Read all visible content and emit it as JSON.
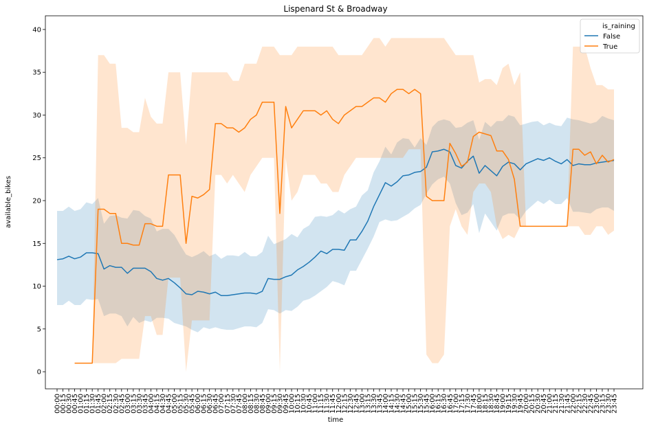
{
  "chart_data": {
    "type": "line",
    "title": "Lispenard St & Broadway",
    "xlabel": "time",
    "ylabel": "available_bikes",
    "ylim": [
      -2,
      41.6
    ],
    "yticks": [
      0,
      5,
      10,
      15,
      20,
      25,
      30,
      35,
      40
    ],
    "legend": {
      "title": "is_raining",
      "position": "top-right"
    },
    "colors": {
      "False": "#1f77b4",
      "True": "#ff7f0e"
    },
    "x": [
      "00:00",
      "00:15",
      "00:30",
      "00:45",
      "01:00",
      "01:15",
      "01:30",
      "01:45",
      "02:00",
      "02:15",
      "02:30",
      "02:45",
      "03:00",
      "03:15",
      "03:30",
      "03:45",
      "04:00",
      "04:15",
      "04:30",
      "04:45",
      "05:00",
      "05:15",
      "05:30",
      "05:45",
      "06:00",
      "06:15",
      "06:30",
      "06:45",
      "07:00",
      "07:15",
      "07:30",
      "07:45",
      "08:00",
      "08:15",
      "08:30",
      "08:45",
      "09:00",
      "09:15",
      "09:30",
      "09:45",
      "10:00",
      "10:15",
      "10:30",
      "10:45",
      "11:00",
      "11:15",
      "11:30",
      "11:45",
      "12:00",
      "12:15",
      "12:30",
      "12:45",
      "13:00",
      "13:15",
      "13:30",
      "13:45",
      "14:00",
      "14:15",
      "14:30",
      "14:45",
      "15:00",
      "15:15",
      "15:30",
      "15:45",
      "16:00",
      "16:15",
      "16:30",
      "16:45",
      "17:00",
      "17:15",
      "17:30",
      "17:45",
      "18:00",
      "18:15",
      "18:30",
      "18:45",
      "19:00",
      "19:15",
      "19:30",
      "19:45",
      "20:00",
      "20:15",
      "20:30",
      "20:45",
      "21:00",
      "21:15",
      "21:30",
      "21:45",
      "22:00",
      "22:15",
      "22:30",
      "22:45",
      "23:00",
      "23:15",
      "23:30",
      "23:45"
    ],
    "series": [
      {
        "name": "False",
        "values": [
          13.1,
          13.2,
          13.5,
          13.2,
          13.4,
          13.9,
          13.9,
          13.8,
          12.0,
          12.4,
          12.2,
          12.2,
          11.5,
          12.1,
          12.1,
          12.1,
          11.7,
          10.9,
          10.7,
          10.9,
          10.4,
          9.8,
          9.1,
          9.0,
          9.4,
          9.3,
          9.1,
          9.3,
          8.9,
          8.9,
          9.0,
          9.1,
          9.2,
          9.2,
          9.1,
          9.4,
          10.9,
          10.8,
          10.8,
          11.1,
          11.3,
          11.9,
          12.3,
          12.8,
          13.4,
          14.1,
          13.8,
          14.3,
          14.3,
          14.2,
          15.4,
          15.4,
          16.4,
          17.6,
          19.3,
          20.7,
          22.1,
          21.7,
          22.2,
          22.9,
          23.0,
          23.3,
          23.4,
          23.9,
          25.7,
          25.8,
          26.0,
          25.7,
          24.1,
          23.8,
          24.6,
          25.2,
          23.2,
          24.1,
          23.5,
          22.9,
          24.0,
          24.5,
          24.3,
          23.6,
          24.3,
          24.6,
          24.9,
          24.7,
          25.0,
          24.6,
          24.3,
          24.8,
          24.1,
          24.3,
          24.2,
          24.2,
          24.4,
          24.5,
          24.6,
          24.7
        ],
        "lower": [
          7.8,
          7.8,
          8.3,
          7.8,
          7.8,
          8.5,
          8.4,
          8.5,
          6.5,
          6.8,
          6.8,
          6.5,
          5.3,
          6.4,
          5.7,
          6.0,
          5.8,
          6.3,
          6.3,
          6.2,
          5.7,
          5.5,
          5.3,
          4.9,
          4.6,
          5.2,
          5.0,
          5.2,
          5.0,
          4.9,
          4.9,
          5.1,
          5.3,
          5.3,
          5.2,
          5.7,
          7.3,
          7.2,
          6.8,
          7.2,
          7.1,
          7.6,
          8.3,
          8.5,
          8.9,
          9.4,
          9.9,
          10.6,
          10.4,
          10.1,
          11.8,
          11.8,
          13.1,
          14.4,
          15.8,
          17.5,
          17.8,
          17.6,
          17.7,
          18.1,
          18.5,
          19.1,
          19.5,
          20.8,
          21.9,
          22.5,
          22.8,
          22.0,
          19.7,
          18.3,
          18.6,
          19.6,
          16.2,
          18.5,
          17.5,
          16.5,
          18.2,
          18.5,
          18.5,
          17.8,
          18.8,
          19.4,
          20.0,
          19.6,
          20.1,
          19.6,
          19.6,
          20.3,
          18.7,
          18.7,
          18.6,
          18.5,
          19.0,
          19.2,
          19.2,
          18.8
        ],
        "upper": [
          18.8,
          18.8,
          19.3,
          18.8,
          19.0,
          19.8,
          19.6,
          20.3,
          17.3,
          18.2,
          18.3,
          18.0,
          17.9,
          18.9,
          18.8,
          18.2,
          17.9,
          16.4,
          16.7,
          16.7,
          16.0,
          14.8,
          13.7,
          13.4,
          13.7,
          14.1,
          13.5,
          13.8,
          13.2,
          13.6,
          13.6,
          13.5,
          14.0,
          13.5,
          13.5,
          14.0,
          15.9,
          14.9,
          15.2,
          15.5,
          16.1,
          15.7,
          16.7,
          17.1,
          18.1,
          18.2,
          18.1,
          18.3,
          18.9,
          18.5,
          19.0,
          19.3,
          20.6,
          21.2,
          23.3,
          24.6,
          26.3,
          25.4,
          26.8,
          27.3,
          27.2,
          26.2,
          27.3,
          26.5,
          28.6,
          29.3,
          29.5,
          29.3,
          28.5,
          28.6,
          29.1,
          29.4,
          27.1,
          29.2,
          28.6,
          29.3,
          29.3,
          30.0,
          29.8,
          28.8,
          29.0,
          29.2,
          29.3,
          28.8,
          29.1,
          28.8,
          28.7,
          29.7,
          29.5,
          29.4,
          29.2,
          29.0,
          29.2,
          29.9,
          29.6,
          29.4
        ]
      },
      {
        "name": "True",
        "values": [
          null,
          null,
          null,
          1,
          1,
          1,
          1,
          19,
          19,
          18.5,
          18.5,
          15,
          15,
          14.8,
          14.8,
          17.3,
          17.3,
          17,
          17,
          23,
          23,
          23,
          15,
          20.5,
          20.3,
          20.7,
          21.3,
          29,
          29,
          28.5,
          28.5,
          28,
          28.5,
          29.5,
          30,
          31.5,
          31.5,
          31.5,
          18.5,
          31,
          28.5,
          29.5,
          30.5,
          30.5,
          30.5,
          30,
          30.5,
          29.5,
          29,
          30,
          30.5,
          31,
          31,
          31.5,
          32,
          32,
          31.5,
          32.5,
          33,
          33,
          32.5,
          33,
          32.5,
          20.5,
          20,
          20,
          20,
          26.7,
          25.5,
          24,
          24.5,
          27.5,
          28,
          27.8,
          27.6,
          25.8,
          25.8,
          24.8,
          22.5,
          17,
          17,
          17,
          17,
          17,
          17,
          17,
          17,
          17,
          26,
          26,
          25.3,
          25.7,
          24.3,
          25.3,
          24.5,
          24.8
        ],
        "lower": [
          null,
          null,
          null,
          1,
          1,
          1,
          1,
          1,
          1,
          1,
          1,
          1.5,
          1.5,
          1.5,
          1.5,
          6.5,
          6.5,
          4.3,
          4.3,
          11,
          11,
          11,
          0,
          6,
          6,
          6,
          6,
          23,
          23,
          22,
          23,
          22,
          21,
          23,
          24,
          25,
          25,
          25,
          0,
          25,
          20,
          21,
          23,
          23,
          23,
          22,
          22,
          21,
          21,
          23,
          24,
          25,
          25,
          25,
          25,
          25,
          25,
          25,
          25,
          25,
          26,
          26,
          26,
          2,
          1,
          1,
          2,
          17,
          19,
          17,
          16,
          21,
          22,
          22,
          21,
          17,
          15.5,
          16,
          15.6,
          17,
          17,
          17,
          17,
          17,
          17,
          17,
          17,
          17,
          17,
          17,
          16,
          16,
          17,
          17,
          16,
          16.5
        ],
        "upper": [
          null,
          null,
          null,
          1,
          1,
          1,
          1,
          37,
          37,
          36,
          36,
          28.5,
          28.5,
          28,
          28,
          32,
          29.8,
          29,
          29,
          35,
          35,
          35,
          26.5,
          35,
          35,
          35,
          35,
          35,
          35,
          35,
          34,
          34,
          36,
          36,
          36,
          38,
          38,
          38,
          37,
          37,
          37,
          38,
          38,
          38,
          38,
          38,
          38,
          38,
          37,
          37,
          37,
          37,
          37,
          38,
          39,
          39,
          38,
          39,
          39,
          39,
          39,
          39,
          39,
          39,
          39,
          39,
          39,
          38,
          37,
          37,
          37,
          37,
          33.8,
          34.2,
          34.2,
          33.5,
          35.5,
          36,
          33.5,
          35,
          17,
          17,
          17,
          17,
          17,
          17,
          17,
          17,
          38,
          38,
          38,
          35.5,
          33.5,
          33.5,
          33,
          33
        ]
      }
    ]
  }
}
